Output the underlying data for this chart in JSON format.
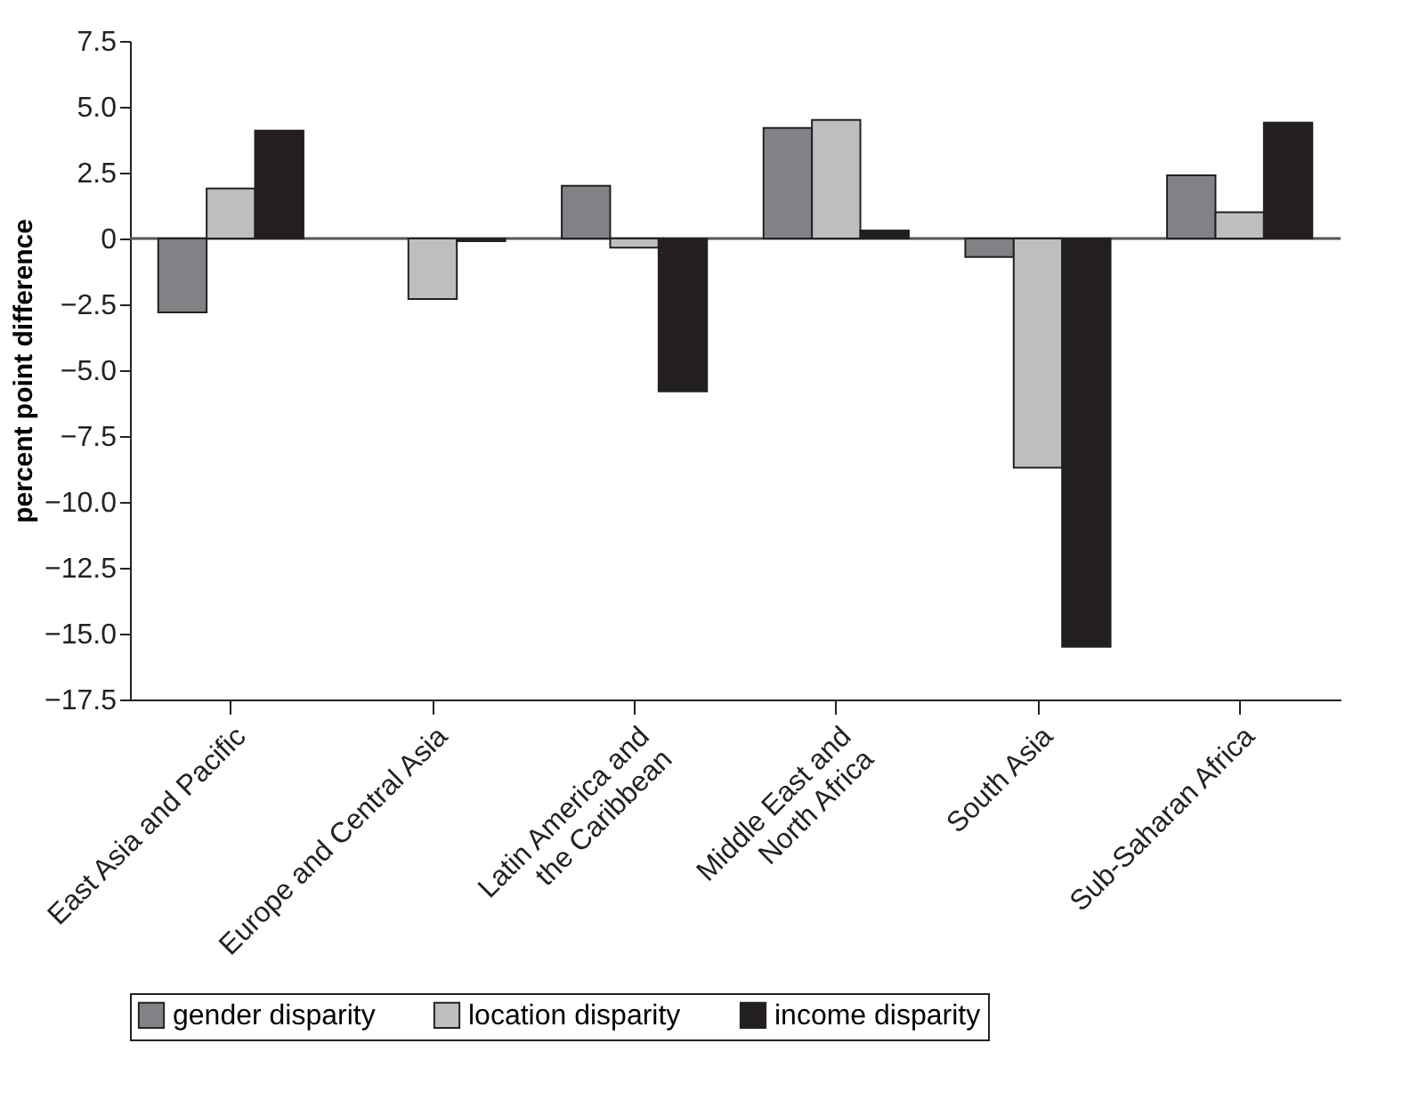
{
  "chart_data": {
    "type": "bar",
    "ylabel": "percent point difference",
    "categories": [
      "East Asia and Pacific",
      "Europe and Central Asia",
      "Latin America and\nthe Caribbean",
      "Middle East and\nNorth Africa",
      "South Asia",
      "Sub-Saharan Africa"
    ],
    "series": [
      {
        "name": "gender disparity",
        "color": "#808285",
        "values": [
          -2.8,
          null,
          2.0,
          4.2,
          -0.7,
          2.4
        ]
      },
      {
        "name": "location disparity",
        "color": "#bcbec0",
        "values": [
          1.9,
          -2.3,
          -0.35,
          4.5,
          -8.7,
          1.0
        ]
      },
      {
        "name": "income disparity",
        "color": "#231f20",
        "values": [
          4.1,
          -0.1,
          -5.8,
          0.3,
          -15.5,
          4.4
        ]
      }
    ],
    "ylim": [
      -17.5,
      7.5
    ],
    "yticks": [
      {
        "value": 7.5,
        "label": "7.5"
      },
      {
        "value": 5,
        "label": "5.0"
      },
      {
        "value": 2.5,
        "label": "2.5"
      },
      0,
      {
        "value": -2.5,
        "label": "−2.5"
      },
      {
        "value": -5,
        "label": "−5.0"
      },
      {
        "value": -7.5,
        "label": "−7.5"
      },
      {
        "value": -10,
        "label": "−10.0"
      },
      {
        "value": -12.5,
        "label": "−12.5"
      },
      {
        "value": -15,
        "label": "−15.0"
      },
      {
        "value": -17.5,
        "label": "−17.5"
      }
    ],
    "ref_lines": [
      {
        "axis": "y",
        "value": 0,
        "color": "#555555"
      }
    ],
    "grid": false,
    "legend": "bottom"
  }
}
